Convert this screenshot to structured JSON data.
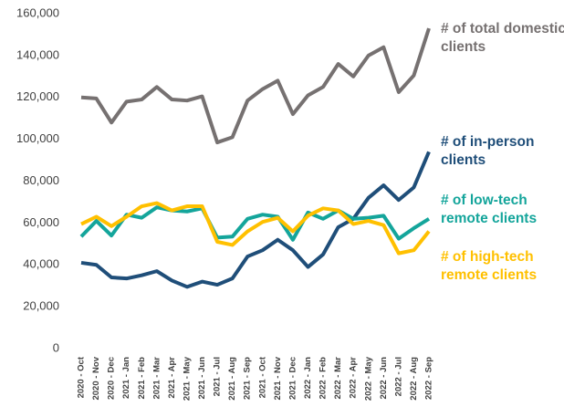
{
  "chart_data": {
    "type": "line",
    "categories": [
      "2020 - Oct",
      "2020 - Nov",
      "2020 - Dec",
      "2021 - Jan",
      "2021 - Feb",
      "2021 - Mar",
      "2021 - Apr",
      "2021 - May",
      "2021 - Jun",
      "2021 - Jul",
      "2021 - Aug",
      "2021 - Sep",
      "2021 - Oct",
      "2021 - Nov",
      "2021 - Dec",
      "2022 - Jan",
      "2022 - Feb",
      "2022 - Mar",
      "2022 - Apr",
      "2022 - May",
      "2022 - Jun",
      "2022 - Jul",
      "2022 - Aug",
      "2022 - Sep"
    ],
    "series": [
      {
        "name": "# of total domestic clients",
        "color": "#767171",
        "values": [
          120000,
          119500,
          108000,
          118000,
          119000,
          125000,
          119000,
          118500,
          120500,
          98500,
          101000,
          118500,
          124000,
          128000,
          112000,
          121000,
          125000,
          136000,
          130000,
          140000,
          144000,
          122500,
          130500,
          153000
        ]
      },
      {
        "name": "# of in-person clients",
        "color": "#1f4e79",
        "values": [
          41000,
          40000,
          34000,
          33500,
          35000,
          37000,
          32500,
          29500,
          32000,
          30500,
          33500,
          44000,
          47000,
          52000,
          47000,
          39000,
          45000,
          58000,
          62000,
          72000,
          78000,
          71000,
          77000,
          94000
        ]
      },
      {
        "name": "# of low-tech remote clients",
        "color": "#14a59b",
        "values": [
          53500,
          61000,
          54000,
          64000,
          62500,
          67500,
          66000,
          65500,
          67000,
          53000,
          53500,
          62000,
          64000,
          63000,
          52000,
          65000,
          62000,
          66000,
          62000,
          62500,
          63500,
          52500,
          57500,
          62000
        ]
      },
      {
        "name": "# of high-tech remote clients",
        "color": "#ffc000",
        "values": [
          59500,
          63000,
          58500,
          63000,
          68000,
          69500,
          66000,
          68000,
          68000,
          51000,
          49500,
          56000,
          60500,
          62500,
          56000,
          63500,
          67000,
          66000,
          59500,
          61000,
          59000,
          45500,
          47000,
          56000
        ]
      }
    ],
    "ylim": [
      0,
      160000
    ],
    "yticks": [
      0,
      {
        "value": 20000,
        "label": "20,000"
      },
      {
        "value": 40000,
        "label": "40,000"
      },
      {
        "value": 60000,
        "label": "60,000"
      },
      {
        "value": 80000,
        "label": "80,000"
      },
      {
        "value": 100000,
        "label": "100,000"
      },
      {
        "value": 120000,
        "label": "120,000"
      },
      {
        "value": 140000,
        "label": "140,000"
      },
      {
        "value": 160000,
        "label": "160,000"
      }
    ],
    "grid": false
  }
}
